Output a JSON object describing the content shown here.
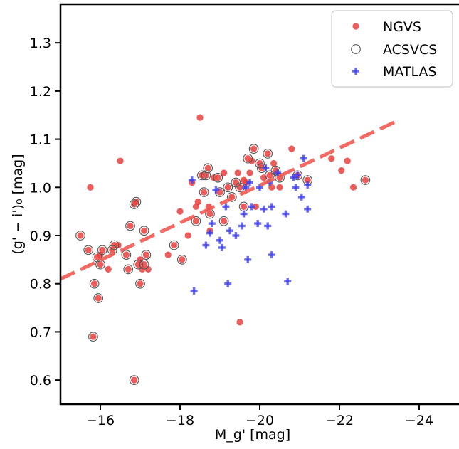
{
  "chart_data": {
    "type": "scatter",
    "title": "",
    "xlabel": "M_g' [mag]",
    "ylabel": "(g' − i')₀ [mag]",
    "xlim": [
      -15,
      -25
    ],
    "ylim": [
      0.55,
      1.38
    ],
    "x_ticks": [
      -16,
      -18,
      -20,
      -22,
      -24
    ],
    "x_tick_labels": [
      "−16",
      "−18",
      "−20",
      "−22",
      "−24"
    ],
    "y_ticks": [
      0.6,
      0.7,
      0.8,
      0.9,
      1.0,
      1.1,
      1.2,
      1.3
    ],
    "y_tick_labels": [
      "0.6",
      "0.7",
      "0.8",
      "0.9",
      "1.0",
      "1.1",
      "1.2",
      "1.3"
    ],
    "grid": false,
    "legend_position": "top-right",
    "colors": {
      "ngvs": "#e8403d",
      "acsvcs": "#555555",
      "matlas": "#3b3bea",
      "fit": "#ef5a52"
    },
    "fit_line": {
      "x": [
        -15.0,
        -23.5
      ],
      "y": [
        0.81,
        1.14
      ],
      "style": "dashed"
    },
    "series": [
      {
        "name": "NGVS",
        "marker": "filled-circle",
        "points": [
          [
            -15.5,
            0.9
          ],
          [
            -15.7,
            0.87
          ],
          [
            -15.75,
            1.0
          ],
          [
            -15.85,
            0.8
          ],
          [
            -15.82,
            0.69
          ],
          [
            -15.95,
            0.77
          ],
          [
            -15.92,
            0.855
          ],
          [
            -16.0,
            0.86
          ],
          [
            -16.0,
            0.84
          ],
          [
            -16.05,
            0.87
          ],
          [
            -16.2,
            0.83
          ],
          [
            -16.3,
            0.87
          ],
          [
            -16.35,
            0.88
          ],
          [
            -16.5,
            1.055
          ],
          [
            -16.45,
            0.88
          ],
          [
            -16.65,
            0.86
          ],
          [
            -16.7,
            0.83
          ],
          [
            -16.75,
            0.92
          ],
          [
            -16.85,
            0.965
          ],
          [
            -16.95,
            0.84
          ],
          [
            -16.9,
            0.97
          ],
          [
            -17.0,
            0.85
          ],
          [
            -17.0,
            0.8
          ],
          [
            -17.05,
            0.83
          ],
          [
            -17.1,
            0.84
          ],
          [
            -17.1,
            0.91
          ],
          [
            -17.15,
            0.86
          ],
          [
            -17.2,
            0.83
          ],
          [
            -16.85,
            0.6
          ],
          [
            -17.7,
            0.86
          ],
          [
            -17.85,
            0.88
          ],
          [
            -18.0,
            0.95
          ],
          [
            -18.05,
            0.85
          ],
          [
            -18.2,
            0.9
          ],
          [
            -18.3,
            1.01
          ],
          [
            -18.4,
            0.93
          ],
          [
            -18.45,
            0.97
          ],
          [
            -18.4,
            0.96
          ],
          [
            -18.5,
            1.145
          ],
          [
            -18.55,
            1.025
          ],
          [
            -18.6,
            0.99
          ],
          [
            -18.65,
            1.025
          ],
          [
            -18.7,
            1.04
          ],
          [
            -18.72,
            0.96
          ],
          [
            -18.75,
            0.945
          ],
          [
            -18.75,
            0.91
          ],
          [
            -18.85,
            1.02
          ],
          [
            -18.95,
            1.02
          ],
          [
            -19.0,
            0.99
          ],
          [
            -19.1,
            1.03
          ],
          [
            -19.1,
            0.93
          ],
          [
            -19.2,
            1.0
          ],
          [
            -19.3,
            0.98
          ],
          [
            -19.4,
            1.01
          ],
          [
            -19.45,
            1.03
          ],
          [
            -19.5,
            1.0
          ],
          [
            -19.5,
            0.72
          ],
          [
            -19.6,
            1.015
          ],
          [
            -19.6,
            0.96
          ],
          [
            -19.65,
            1.01
          ],
          [
            -19.7,
            1.06
          ],
          [
            -19.75,
            1.03
          ],
          [
            -19.8,
            1.055
          ],
          [
            -19.85,
            1.08
          ],
          [
            -19.9,
            0.96
          ],
          [
            -20.0,
            1.05
          ],
          [
            -20.05,
            1.04
          ],
          [
            -20.1,
            1.02
          ],
          [
            -20.2,
            1.07
          ],
          [
            -20.25,
            1.025
          ],
          [
            -20.3,
            1.0
          ],
          [
            -20.35,
            1.05
          ],
          [
            -20.4,
            1.035
          ],
          [
            -20.5,
            1.02
          ],
          [
            -20.5,
            1.0
          ],
          [
            -20.8,
            1.08
          ],
          [
            -20.95,
            1.025
          ],
          [
            -21.2,
            1.015
          ],
          [
            -21.8,
            1.06
          ],
          [
            -22.05,
            1.035
          ],
          [
            -22.2,
            1.055
          ],
          [
            -22.35,
            1.0
          ],
          [
            -22.65,
            1.015
          ]
        ]
      },
      {
        "name": "ACSVCS",
        "marker": "open-circle",
        "points": [
          [
            -15.5,
            0.9
          ],
          [
            -15.7,
            0.87
          ],
          [
            -15.85,
            0.8
          ],
          [
            -15.82,
            0.69
          ],
          [
            -15.95,
            0.77
          ],
          [
            -15.92,
            0.855
          ],
          [
            -16.0,
            0.84
          ],
          [
            -16.05,
            0.87
          ],
          [
            -16.3,
            0.87
          ],
          [
            -16.35,
            0.88
          ],
          [
            -16.65,
            0.86
          ],
          [
            -16.7,
            0.83
          ],
          [
            -16.75,
            0.92
          ],
          [
            -16.85,
            0.965
          ],
          [
            -16.95,
            0.84
          ],
          [
            -16.9,
            0.97
          ],
          [
            -17.0,
            0.8
          ],
          [
            -17.1,
            0.84
          ],
          [
            -17.1,
            0.91
          ],
          [
            -17.15,
            0.86
          ],
          [
            -16.85,
            0.6
          ],
          [
            -17.85,
            0.88
          ],
          [
            -18.05,
            0.85
          ],
          [
            -18.4,
            0.93
          ],
          [
            -18.55,
            1.025
          ],
          [
            -18.6,
            0.99
          ],
          [
            -18.65,
            1.025
          ],
          [
            -18.7,
            1.04
          ],
          [
            -18.75,
            0.945
          ],
          [
            -18.95,
            1.02
          ],
          [
            -19.0,
            0.99
          ],
          [
            -19.1,
            0.93
          ],
          [
            -19.2,
            1.0
          ],
          [
            -19.3,
            0.98
          ],
          [
            -19.4,
            1.01
          ],
          [
            -19.5,
            1.0
          ],
          [
            -19.6,
            0.96
          ],
          [
            -19.7,
            1.06
          ],
          [
            -19.85,
            1.08
          ],
          [
            -20.0,
            1.05
          ],
          [
            -20.05,
            1.04
          ],
          [
            -20.2,
            1.07
          ],
          [
            -20.25,
            1.025
          ],
          [
            -20.4,
            1.035
          ],
          [
            -20.5,
            1.02
          ],
          [
            -20.95,
            1.025
          ],
          [
            -21.2,
            1.015
          ],
          [
            -22.65,
            1.015
          ]
        ]
      },
      {
        "name": "MATLAS",
        "marker": "plus",
        "points": [
          [
            -18.3,
            1.015
          ],
          [
            -18.35,
            0.785
          ],
          [
            -18.65,
            0.88
          ],
          [
            -18.75,
            0.905
          ],
          [
            -18.8,
            0.925
          ],
          [
            -18.9,
            0.995
          ],
          [
            -19.0,
            0.89
          ],
          [
            -19.05,
            0.875
          ],
          [
            -19.15,
            0.96
          ],
          [
            -19.2,
            0.8
          ],
          [
            -19.25,
            0.91
          ],
          [
            -19.4,
            0.9
          ],
          [
            -19.55,
            0.92
          ],
          [
            -19.6,
            0.945
          ],
          [
            -19.65,
            1.0
          ],
          [
            -19.7,
            0.85
          ],
          [
            -19.75,
            1.01
          ],
          [
            -19.8,
            0.96
          ],
          [
            -19.95,
            0.925
          ],
          [
            -20.0,
            1.0
          ],
          [
            -20.1,
            0.955
          ],
          [
            -20.15,
            1.04
          ],
          [
            -20.2,
            0.92
          ],
          [
            -20.25,
            1.01
          ],
          [
            -20.3,
            0.96
          ],
          [
            -20.3,
            0.86
          ],
          [
            -20.45,
            1.03
          ],
          [
            -20.65,
            0.945
          ],
          [
            -20.7,
            0.805
          ],
          [
            -20.85,
            1.02
          ],
          [
            -20.9,
            1.0
          ],
          [
            -20.95,
            1.025
          ],
          [
            -21.05,
            0.98
          ],
          [
            -21.1,
            1.06
          ],
          [
            -21.2,
            1.005
          ],
          [
            -21.2,
            0.955
          ]
        ]
      }
    ]
  }
}
